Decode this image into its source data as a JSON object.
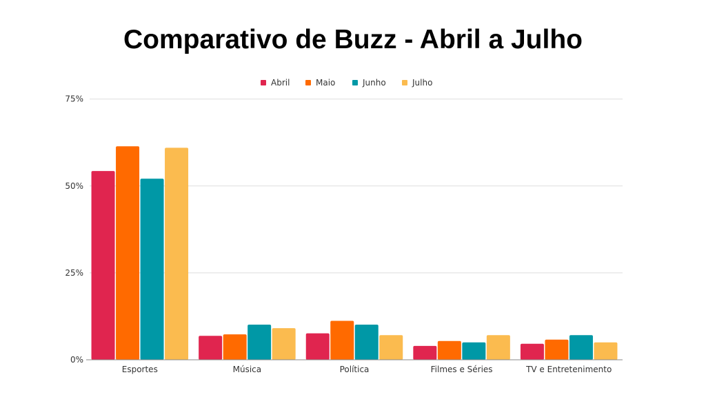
{
  "chart_data": {
    "type": "bar",
    "title": "Comparativo de Buzz - Abril a Julho",
    "categories": [
      "Esportes",
      "Música",
      "Política",
      "Filmes e Séries",
      "TV e Entretenimento"
    ],
    "series": [
      {
        "name": "Abril",
        "color": "#E0254F",
        "values": [
          54.3,
          6.9,
          7.6,
          4.0,
          4.6
        ]
      },
      {
        "name": "Maio",
        "color": "#FF6A00",
        "values": [
          61.4,
          7.3,
          11.2,
          5.4,
          5.8
        ]
      },
      {
        "name": "Junho",
        "color": "#0098A6",
        "values": [
          52.1,
          10.1,
          10.1,
          5.0,
          7.1
        ]
      },
      {
        "name": "Julho",
        "color": "#FBBB4F",
        "values": [
          61.0,
          9.1,
          7.1,
          7.1,
          5.0
        ]
      }
    ],
    "yticks": [
      "0%",
      "25%",
      "50%",
      "75%"
    ],
    "ytick_values": [
      0,
      25,
      50,
      75
    ],
    "ylim": [
      0,
      75
    ],
    "xlabel": "",
    "ylabel": "",
    "legend_position": "top-center",
    "grid": true
  }
}
